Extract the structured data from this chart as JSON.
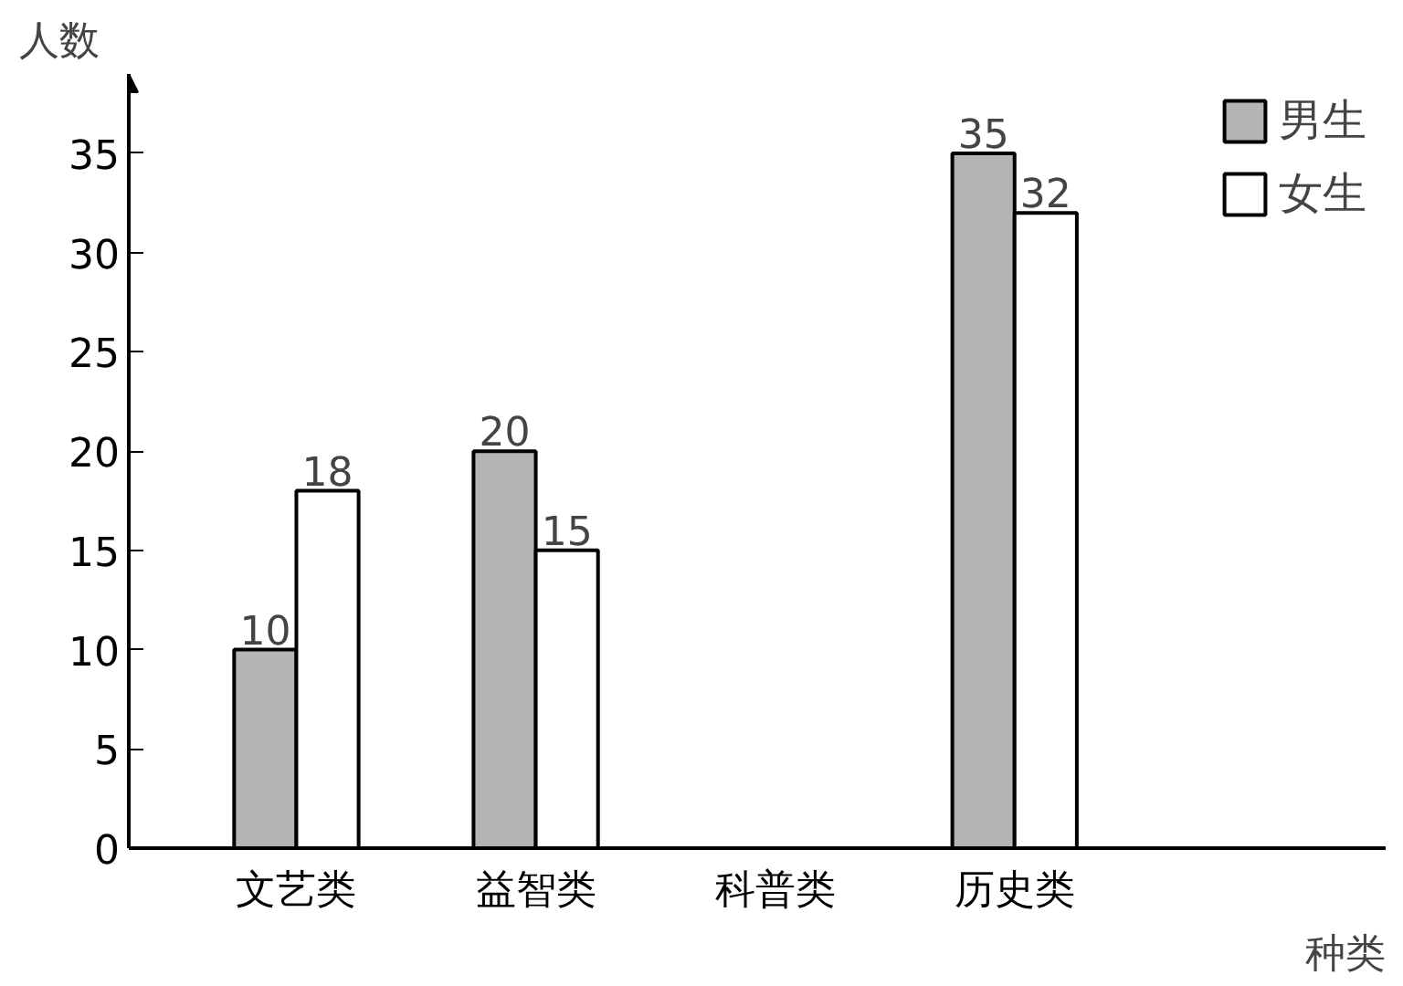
{
  "chart_data": {
    "type": "bar",
    "xlabel": "种类",
    "ylabel": "人数",
    "categories": [
      "文艺类",
      "益智类",
      "科普类",
      "历史类"
    ],
    "series": [
      {
        "name": "男生",
        "color": "#b4b4b4",
        "values": [
          10,
          20,
          null,
          35
        ]
      },
      {
        "name": "女生",
        "color": "#ffffff",
        "values": [
          18,
          15,
          null,
          32
        ]
      }
    ],
    "ylim": [
      0,
      39
    ],
    "yticks": [
      0,
      5,
      10,
      15,
      20,
      25,
      30,
      35
    ],
    "grid": false,
    "legend": "top right",
    "data_labels": true
  }
}
